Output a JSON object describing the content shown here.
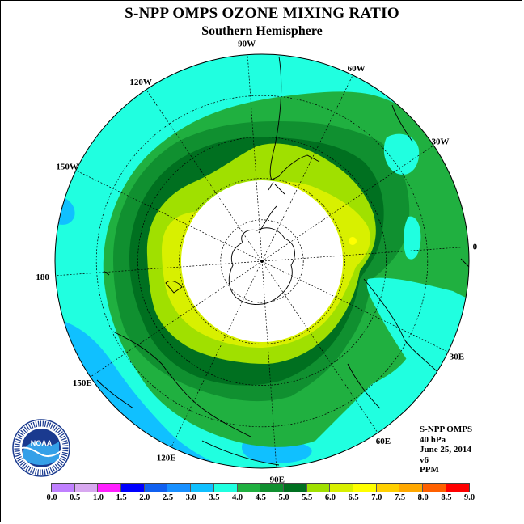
{
  "header": {
    "title": "S-NPP OMPS OZONE MIXING RATIO",
    "subtitle": "Southern Hemisphere"
  },
  "longitude_labels": [
    "90W",
    "60W",
    "30W",
    "0",
    "30E",
    "60E",
    "90E",
    "120E",
    "150E",
    "180",
    "150W",
    "120W"
  ],
  "info": {
    "instrument": "S-NPP OMPS",
    "level": "40 hPa",
    "date": "June 25, 2014",
    "version": "v6",
    "units": "PPM"
  },
  "logo": {
    "icon": "noaa-logo-icon",
    "text": "NOAA"
  },
  "colorbar": {
    "ticks": [
      "0.0",
      "0.5",
      "1.0",
      "1.5",
      "2.0",
      "2.5",
      "3.0",
      "3.5",
      "4.0",
      "4.5",
      "5.0",
      "5.5",
      "6.0",
      "6.5",
      "7.0",
      "7.5",
      "8.0",
      "8.5",
      "9.0"
    ],
    "colors": [
      "#c080ff",
      "#d8a8f0",
      "#ff20ff",
      "#0000ff",
      "#1060f0",
      "#1890ff",
      "#10c0ff",
      "#20ffe0",
      "#20b040",
      "#109030",
      "#007020",
      "#a0e000",
      "#d8f000",
      "#ffff00",
      "#ffd000",
      "#ffa800",
      "#ff6000",
      "#ff0000",
      "#8b5a2b"
    ]
  },
  "map_colors": {
    "band_3_0_3_5": "#10c0ff",
    "band_3_5_4_0": "#20ffe0",
    "band_4_0_4_5": "#20b040",
    "band_4_5_5_0": "#109030",
    "band_5_0_5_5": "#007020",
    "band_5_5_6_0": "#a0e000",
    "band_6_0_6_5": "#d8f000",
    "no_data": "#ffffff"
  }
}
